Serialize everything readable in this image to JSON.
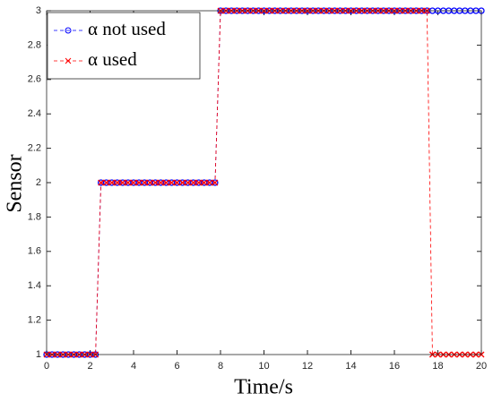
{
  "chart_data": {
    "type": "line",
    "x_label": "Time/s",
    "y_label": "Sensor",
    "x": [
      0,
      0.25,
      0.5,
      0.75,
      1,
      1.25,
      1.5,
      1.75,
      2,
      2.25,
      2.5,
      2.75,
      3,
      3.25,
      3.5,
      3.75,
      4,
      4.25,
      4.5,
      4.75,
      5,
      5.25,
      5.5,
      5.75,
      6,
      6.25,
      6.5,
      6.75,
      7,
      7.25,
      7.5,
      7.75,
      8,
      8.25,
      8.5,
      8.75,
      9,
      9.25,
      9.5,
      9.75,
      10,
      10.25,
      10.5,
      10.75,
      11,
      11.25,
      11.5,
      11.75,
      12,
      12.25,
      12.5,
      12.75,
      13,
      13.25,
      13.5,
      13.75,
      14,
      14.25,
      14.5,
      14.75,
      15,
      15.25,
      15.5,
      15.75,
      16,
      16.25,
      16.5,
      16.75,
      17,
      17.25,
      17.5,
      17.75,
      18,
      18.25,
      18.5,
      18.75,
      19,
      19.25,
      19.5,
      19.75,
      20
    ],
    "series": [
      {
        "name": "α not used",
        "color": "#0000ff",
        "marker": "circle",
        "values": [
          1,
          1,
          1,
          1,
          1,
          1,
          1,
          1,
          1,
          1,
          2,
          2,
          2,
          2,
          2,
          2,
          2,
          2,
          2,
          2,
          2,
          2,
          2,
          2,
          2,
          2,
          2,
          2,
          2,
          2,
          2,
          2,
          3,
          3,
          3,
          3,
          3,
          3,
          3,
          3,
          3,
          3,
          3,
          3,
          3,
          3,
          3,
          3,
          3,
          3,
          3,
          3,
          3,
          3,
          3,
          3,
          3,
          3,
          3,
          3,
          3,
          3,
          3,
          3,
          3,
          3,
          3,
          3,
          3,
          3,
          3,
          3,
          3,
          3,
          3,
          3,
          3,
          3,
          3,
          3,
          3
        ]
      },
      {
        "name": "α used",
        "color": "#ff0000",
        "marker": "x",
        "values": [
          1,
          1,
          1,
          1,
          1,
          1,
          1,
          1,
          1,
          1,
          2,
          2,
          2,
          2,
          2,
          2,
          2,
          2,
          2,
          2,
          2,
          2,
          2,
          2,
          2,
          2,
          2,
          2,
          2,
          2,
          2,
          2,
          3,
          3,
          3,
          3,
          3,
          3,
          3,
          3,
          3,
          3,
          3,
          3,
          3,
          3,
          3,
          3,
          3,
          3,
          3,
          3,
          3,
          3,
          3,
          3,
          3,
          3,
          3,
          3,
          3,
          3,
          3,
          3,
          3,
          3,
          3,
          3,
          3,
          3,
          3,
          1,
          1,
          1,
          1,
          1,
          1,
          1,
          1,
          1,
          1
        ]
      }
    ],
    "xlim": [
      0,
      20
    ],
    "xticks": [
      0,
      2,
      4,
      6,
      8,
      10,
      12,
      14,
      16,
      18,
      20
    ],
    "ylim": [
      1,
      3
    ],
    "yticks": [
      1,
      1.2,
      1.4,
      1.6,
      1.8,
      2,
      2.2,
      2.4,
      2.6,
      2.8,
      3
    ],
    "legend": "upper left"
  }
}
